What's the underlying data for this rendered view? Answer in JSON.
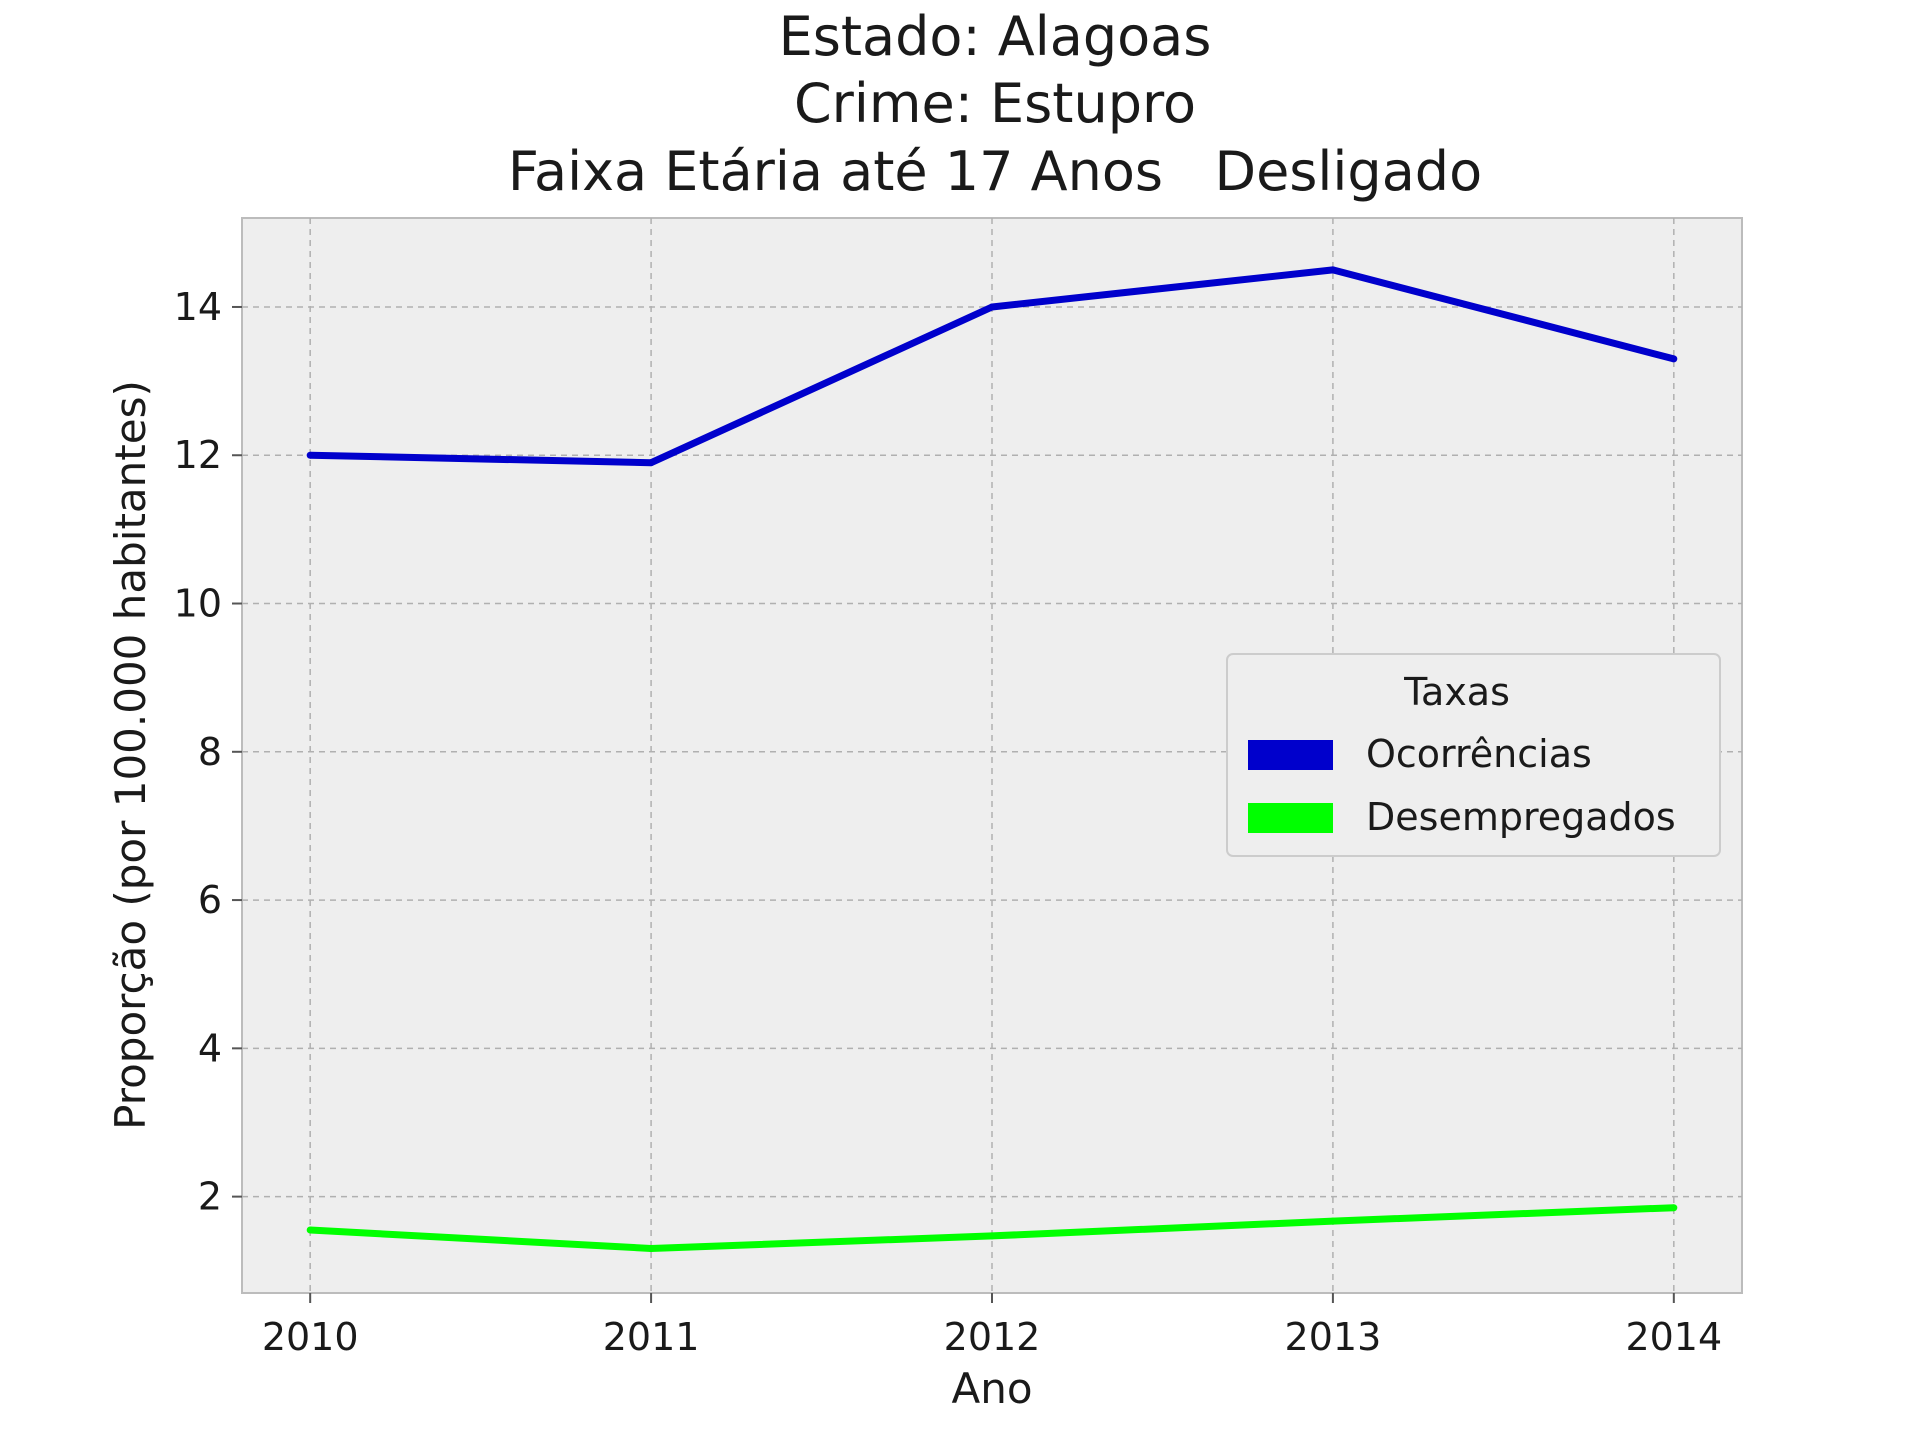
{
  "chart_data": {
    "type": "line",
    "title_lines": [
      "Estado: Alagoas",
      "Crime: Estupro",
      "Faixa Etária até 17 Anos   Desligado"
    ],
    "xlabel": "Ano",
    "ylabel": "Proporção (por 100.000 habitantes)",
    "categories": [
      "2010",
      "2011",
      "2012",
      "2013",
      "2014"
    ],
    "x": [
      2010,
      2011,
      2012,
      2013,
      2014
    ],
    "yticks": [
      2,
      4,
      6,
      8,
      10,
      12,
      14
    ],
    "ylim": [
      0.7,
      15.2
    ],
    "xlim": [
      2009.8,
      2014.2
    ],
    "grid": true,
    "legend": {
      "title": "Taxas",
      "placement": "center-right"
    },
    "series": [
      {
        "name": "Ocorrências",
        "color": "#0000cc",
        "values": [
          12.0,
          11.9,
          14.0,
          14.5,
          13.3
        ]
      },
      {
        "name": "Desempregados",
        "color": "#00ff00",
        "values": [
          1.55,
          1.3,
          1.47,
          1.67,
          1.85
        ]
      }
    ]
  }
}
